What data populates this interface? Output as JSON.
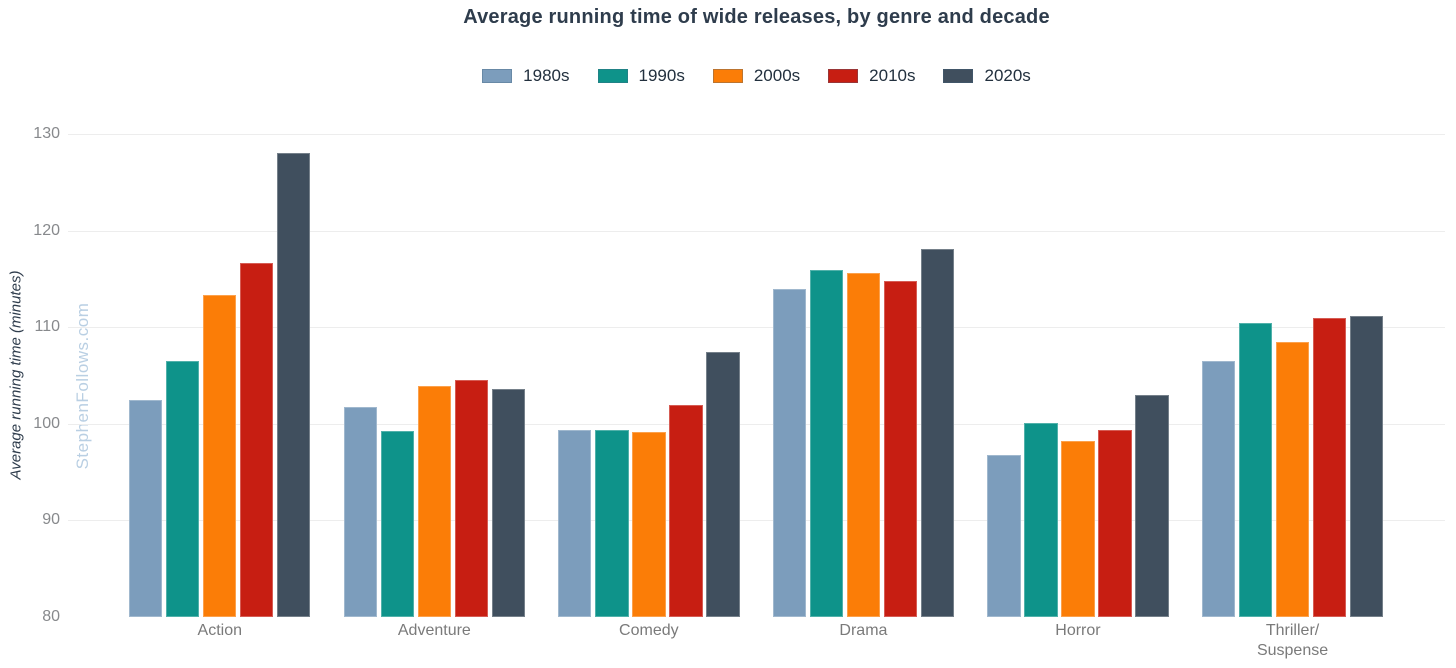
{
  "chart_data": {
    "type": "bar",
    "title": "Average running time of wide releases, by genre and decade",
    "xlabel": "",
    "ylabel": "Average running time (minutes)",
    "ylim": [
      80,
      130
    ],
    "yticks": [
      80,
      90,
      100,
      110,
      120,
      130
    ],
    "grid": "horizontal gridlines at 90-130 only, none at 80, no axis lines",
    "legend_position": "top center",
    "categories": [
      "Action",
      "Adventure",
      "Comedy",
      "Drama",
      "Horror",
      "Thriller/Suspense"
    ],
    "category_label_lines": [
      [
        "Action"
      ],
      [
        "Adventure"
      ],
      [
        "Comedy"
      ],
      [
        "Drama"
      ],
      [
        "Horror"
      ],
      [
        "Thriller/",
        "Suspense"
      ]
    ],
    "series": [
      {
        "name": "1980s",
        "color": "#7c9dbc",
        "values": [
          102.5,
          101.7,
          99.4,
          114.0,
          96.8,
          106.5
        ]
      },
      {
        "name": "1990s",
        "color": "#0e938a",
        "values": [
          106.5,
          99.3,
          99.4,
          115.9,
          100.1,
          110.4
        ]
      },
      {
        "name": "2000s",
        "color": "#fb7d07",
        "values": [
          113.3,
          103.9,
          99.2,
          115.6,
          98.2,
          108.5
        ]
      },
      {
        "name": "2010s",
        "color": "#c71e12",
        "values": [
          116.6,
          104.5,
          102.0,
          114.8,
          99.4,
          111.0
        ]
      },
      {
        "name": "2020s",
        "color": "#404f5e",
        "values": [
          128.0,
          103.6,
          107.4,
          118.1,
          103.0,
          111.2
        ]
      }
    ]
  },
  "watermark": "StephenFollows.com",
  "colors": {
    "title_text": "#2e3c4c",
    "legend_text": "#22303e",
    "y_tick_text": "#87898c",
    "x_label_text": "#7a7a7a",
    "y_axis_title_text": "#2e3c4c",
    "gridline": "#ededed",
    "watermark_text": "#b9cfe3",
    "background": "#ffffff"
  }
}
